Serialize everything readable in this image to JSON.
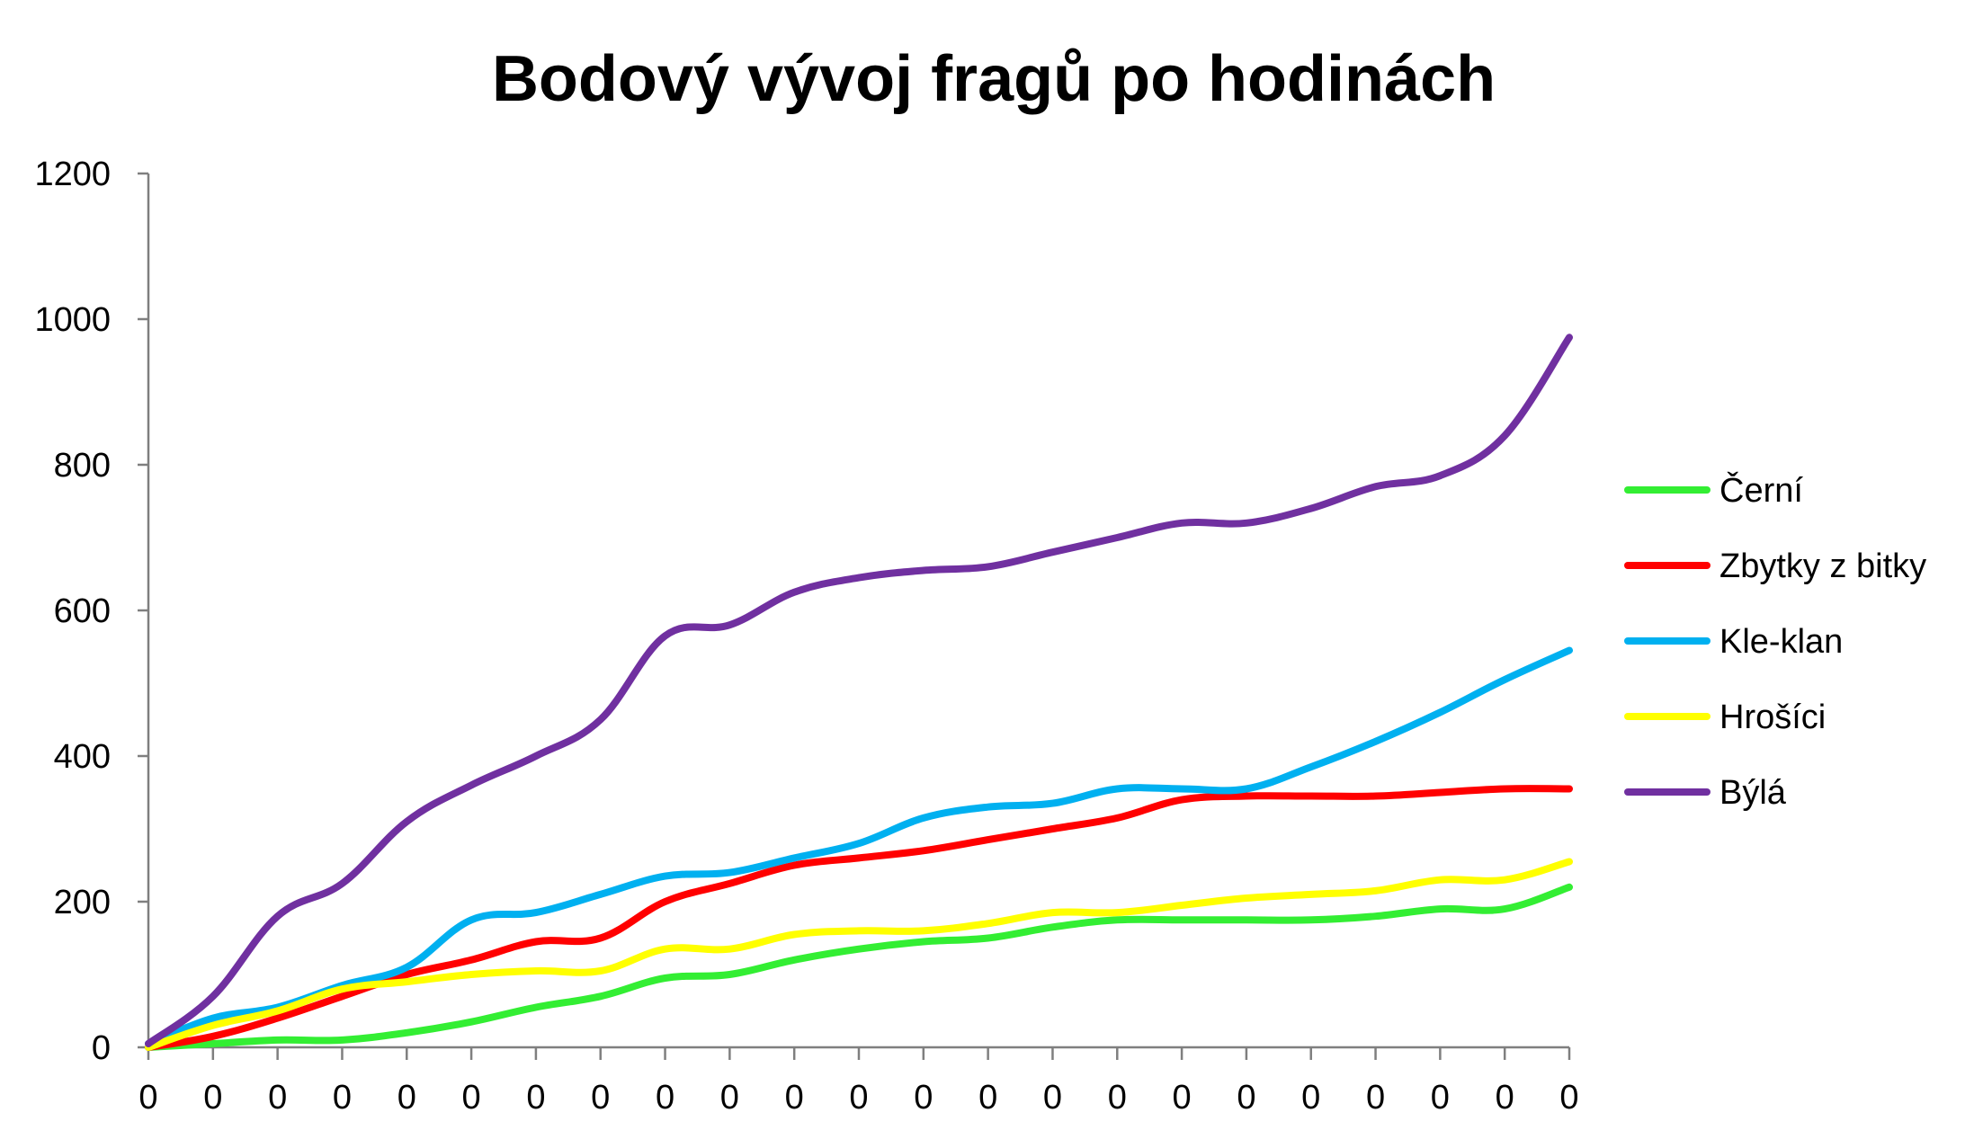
{
  "chart_data": {
    "type": "line",
    "title": "Bodový vývoj fragů po hodinách",
    "xlabel": "",
    "ylabel": "",
    "ylim": [
      0,
      1200
    ],
    "yticks": [
      0,
      200,
      400,
      600,
      800,
      1000,
      1200
    ],
    "categories": [
      "0",
      "0",
      "0",
      "0",
      "0",
      "0",
      "0",
      "0",
      "0",
      "0",
      "0",
      "0",
      "0",
      "0",
      "0",
      "0",
      "0",
      "0",
      "0",
      "0",
      "0",
      "0",
      "0"
    ],
    "legend_position": "right",
    "grid": false,
    "series": [
      {
        "name": "Černí",
        "color": "#33ee33",
        "values": [
          0,
          5,
          10,
          10,
          20,
          35,
          55,
          70,
          95,
          100,
          120,
          135,
          145,
          150,
          165,
          175,
          175,
          175,
          175,
          180,
          190,
          190,
          220
        ]
      },
      {
        "name": "Zbytky z bitky",
        "color": "#ff0000",
        "values": [
          0,
          15,
          40,
          70,
          100,
          120,
          145,
          150,
          200,
          225,
          250,
          260,
          270,
          285,
          300,
          315,
          340,
          345,
          345,
          345,
          350,
          355,
          355
        ]
      },
      {
        "name": "Kle-klan",
        "color": "#00b0f0",
        "values": [
          5,
          40,
          55,
          85,
          110,
          175,
          185,
          210,
          235,
          240,
          260,
          280,
          315,
          330,
          335,
          355,
          355,
          355,
          385,
          420,
          460,
          505,
          545
        ]
      },
      {
        "name": "Hrošíci",
        "color": "#ffff00",
        "values": [
          0,
          30,
          50,
          80,
          90,
          100,
          105,
          105,
          135,
          135,
          155,
          160,
          160,
          170,
          185,
          185,
          195,
          205,
          210,
          215,
          230,
          230,
          255
        ]
      },
      {
        "name": "Býlá",
        "color": "#7030a0",
        "values": [
          5,
          70,
          180,
          225,
          310,
          360,
          400,
          450,
          565,
          580,
          625,
          645,
          655,
          660,
          680,
          700,
          720,
          720,
          740,
          770,
          785,
          840,
          975
        ]
      }
    ]
  }
}
